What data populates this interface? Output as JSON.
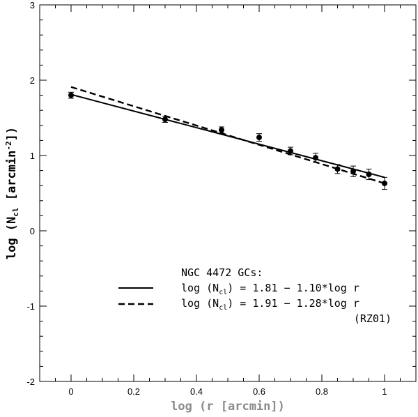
{
  "chart_data": {
    "type": "scatter",
    "title": "",
    "xlabel_prefix": "log (r [arcmin])",
    "ylabel": "log (N",
    "ylabel_sub": "cl",
    "ylabel_tail": " [arcmin",
    "ylabel_sup": "-2",
    "ylabel_end": "])",
    "xlim": [
      -0.1,
      1.1
    ],
    "ylim": [
      -2,
      3
    ],
    "xticks": [
      0,
      0.2,
      0.4,
      0.6,
      0.8,
      1
    ],
    "xtick_labels": [
      "0",
      "0.2",
      "0.4",
      "0.6",
      "0.8",
      "1"
    ],
    "yticks": [
      -2,
      -1,
      0,
      1,
      2,
      3
    ],
    "ytick_labels": [
      "-2",
      "-1",
      "0",
      "1",
      "2",
      "3"
    ],
    "series": [
      {
        "name": "NGC 4472 GCs",
        "style": "points-with-errorbars",
        "x": [
          0,
          0.3,
          0.48,
          0.6,
          0.7,
          0.78,
          0.85,
          0.9,
          0.95,
          1.0
        ],
        "y": [
          1.8,
          1.48,
          1.34,
          1.24,
          1.06,
          0.97,
          0.82,
          0.79,
          0.75,
          0.63
        ],
        "err": [
          0.04,
          0.04,
          0.04,
          0.05,
          0.05,
          0.06,
          0.06,
          0.07,
          0.07,
          0.08
        ]
      },
      {
        "name": "log (Ncl) = 1.81 - 1.10*log r",
        "style": "solid",
        "intercept": 1.81,
        "slope": -1.1,
        "x_range": [
          0,
          1
        ]
      },
      {
        "name": "log (Ncl) = 1.91 - 1.28*log r",
        "style": "dashed",
        "intercept": 1.91,
        "slope": -1.28,
        "x_range": [
          0,
          1
        ]
      }
    ],
    "legend": {
      "position": "bottom-right",
      "title": "NGC 4472 GCs:",
      "entries": [
        {
          "prefix": "log (N",
          "sub": "cl",
          "suffix": ") = 1.81 − 1.10*log r",
          "style": "solid"
        },
        {
          "prefix": "log (N",
          "sub": "cl",
          "suffix": ") = 1.91 − 1.28*log r",
          "style": "dashed"
        }
      ],
      "note": "(RZ01)"
    }
  }
}
